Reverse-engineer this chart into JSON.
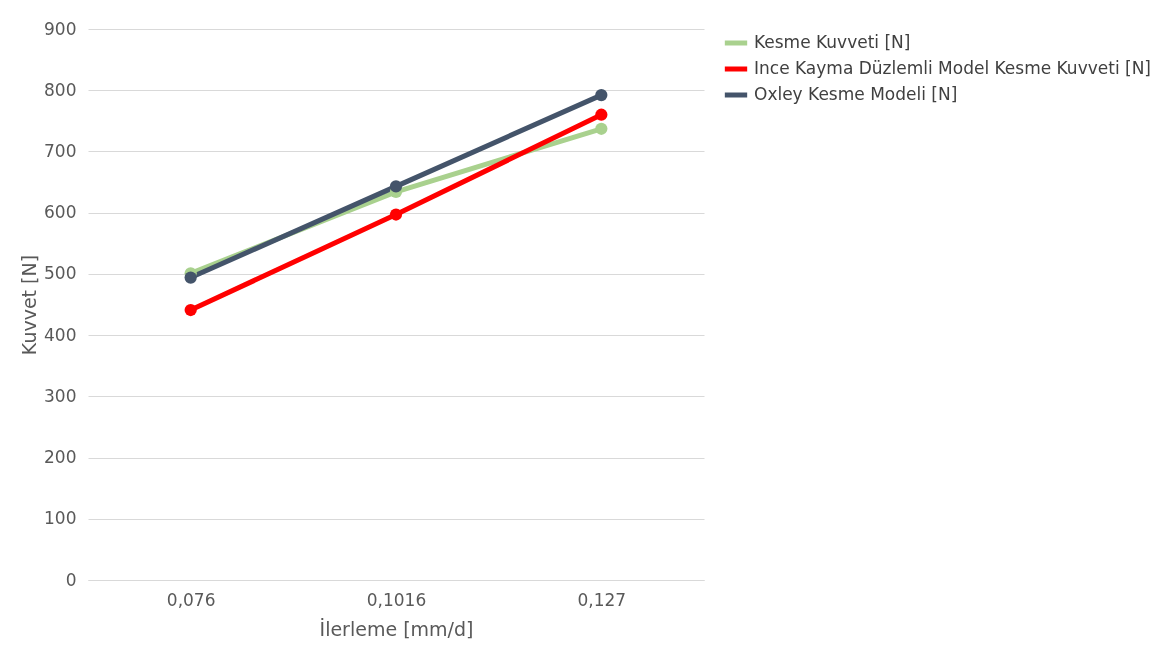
{
  "chart_data": {
    "type": "line",
    "xlabel": "İlerleme [mm/d]",
    "ylabel": "Kuvvet [N]",
    "categories": [
      "0,076",
      "0,1016",
      "0,127"
    ],
    "series": [
      {
        "name": "Kesme Kuvveti [N]",
        "color": "#a9d18e",
        "values": [
          501,
          634,
          737
        ]
      },
      {
        "name": "Ince Kayma Düzlemli Model Kesme Kuvveti [N]",
        "color": "#ff0000",
        "values": [
          441,
          597,
          760
        ]
      },
      {
        "name": "Oxley Kesme Modeli [N]",
        "color": "#44546a",
        "values": [
          494,
          643,
          792
        ]
      }
    ],
    "ylim": [
      0,
      900
    ],
    "yticks": [
      0,
      100,
      200,
      300,
      400,
      500,
      600,
      700,
      800,
      900
    ],
    "grid": "y",
    "legend": "right",
    "marker": "circle",
    "line_style": "solid"
  }
}
